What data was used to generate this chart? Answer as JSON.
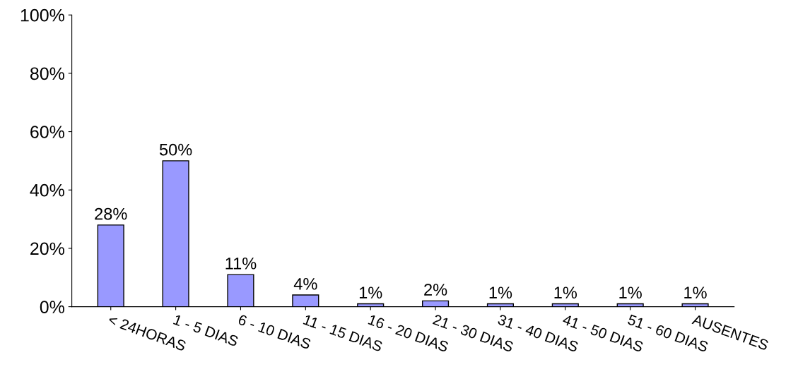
{
  "chart_data": {
    "type": "bar",
    "categories": [
      "< 24HORAS",
      "1 - 5 DIAS",
      "6 - 10 DIAS",
      "11 - 15 DIAS",
      "16 - 20 DIAS",
      "21 - 30 DIAS",
      "31 - 40 DIAS",
      "41 - 50 DIAS",
      "51 - 60 DIAS",
      "AUSENTES"
    ],
    "values": [
      28,
      50,
      11,
      4,
      1,
      2,
      1,
      1,
      1,
      1
    ],
    "value_labels": [
      "28%",
      "50%",
      "11%",
      "4%",
      "1%",
      "2%",
      "1%",
      "1%",
      "1%",
      "1%"
    ],
    "color": "#9999ff",
    "ylim": [
      0,
      100
    ],
    "yticks": [
      {
        "value": 0,
        "label": "0%"
      },
      {
        "value": 20,
        "label": "20%"
      },
      {
        "value": 40,
        "label": "40%"
      },
      {
        "value": 60,
        "label": "60%"
      },
      {
        "value": 80,
        "label": "80%"
      },
      {
        "value": 100,
        "label": "100%"
      }
    ],
    "grid": false
  }
}
